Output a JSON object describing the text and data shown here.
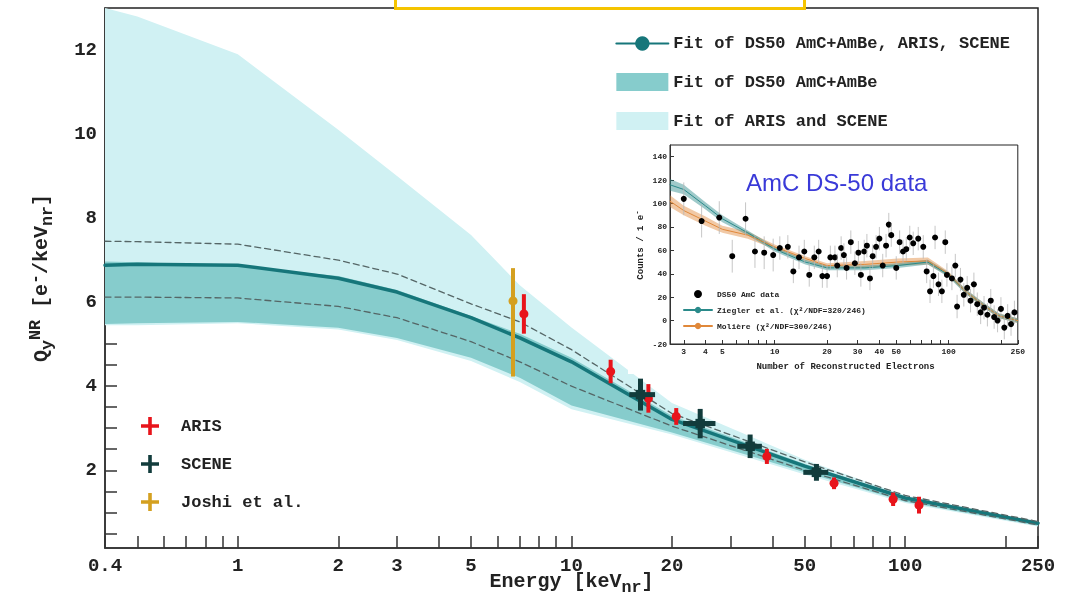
{
  "chart_data": [
    {
      "type": "line",
      "xlabel": "Energy [keV$_{nr}$]",
      "ylabel": "Q$_{y}$$^{NR}$  [e$^{-}$/keV$_{nr}$]",
      "log": "x",
      "legend": [
        "top right",
        "bottom left"
      ],
      "xlim": [
        0.4,
        250
      ],
      "ylim": [
        0.15,
        13
      ],
      "xticks": [
        0.4,
        {
          "value": 0.5,
          "label": null
        },
        {
          "value": 0.6,
          "label": null
        },
        {
          "value": 0.7,
          "label": null
        },
        {
          "value": 0.8,
          "label": null
        },
        {
          "value": 0.9,
          "label": null
        },
        1,
        2,
        3,
        {
          "value": 4,
          "label": null
        },
        5,
        {
          "value": 6,
          "label": null
        },
        {
          "value": 7,
          "label": null
        },
        {
          "value": 8,
          "label": null
        },
        {
          "value": 9,
          "label": null
        },
        10,
        20,
        {
          "value": 30,
          "label": null
        },
        {
          "value": 40,
          "label": null
        },
        50,
        {
          "value": 60,
          "label": null
        },
        {
          "value": 70,
          "label": null
        },
        {
          "value": 80,
          "label": null
        },
        {
          "value": 90,
          "label": null
        },
        100,
        {
          "value": 200,
          "label": null
        },
        250
      ],
      "yticks": [
        {
          "value": 0.5,
          "label": null
        },
        {
          "value": 1,
          "label": null
        },
        {
          "value": 1.5,
          "label": null
        },
        2,
        {
          "value": 2.5,
          "label": null
        },
        {
          "value": 3,
          "label": null
        },
        {
          "value": 3.5,
          "label": null
        },
        4,
        {
          "value": 4.5,
          "label": null
        },
        {
          "value": 5,
          "label": null
        },
        {
          "value": 5.5,
          "label": null
        },
        6,
        {
          "value": 6.5,
          "label": null
        },
        {
          "value": 7,
          "label": null
        },
        {
          "value": 7.5,
          "label": null
        },
        8,
        {
          "value": 8.5,
          "label": null
        },
        {
          "value": 9,
          "label": null
        },
        {
          "value": 9.5,
          "label": null
        },
        10,
        {
          "value": 10.5,
          "label": null
        },
        {
          "value": 11,
          "label": null
        },
        {
          "value": 11.5,
          "label": null
        },
        12,
        {
          "value": 12.5,
          "label": null
        }
      ],
      "series": [
        {
          "name": "Fit of DS50 AmC+AmBe, ARIS, SCENE",
          "color": "#16767a",
          "line_style": "solid",
          "x": [
            0.4,
            0.5,
            1,
            2,
            3,
            5,
            7,
            10,
            20,
            50,
            100,
            250
          ],
          "values": [
            6.88,
            6.9,
            6.88,
            6.57,
            6.24,
            5.63,
            5.15,
            4.58,
            3.21,
            2.1,
            1.34,
            0.74
          ]
        },
        {
          "color": "#556666",
          "line_style": "dashed",
          "x": [
            0.4,
            0.5,
            1,
            2,
            3,
            5,
            7,
            10,
            20,
            50,
            100,
            250
          ],
          "values": [
            7.45,
            7.44,
            7.38,
            7.0,
            6.67,
            5.96,
            5.53,
            4.87,
            3.35,
            2.2,
            1.4,
            0.78
          ]
        },
        {
          "color": "#556666",
          "line_style": "dashed",
          "x": [
            0.4,
            0.5,
            1,
            2,
            3,
            5,
            7,
            10,
            20,
            50,
            100,
            250
          ],
          "values": [
            6.12,
            6.12,
            6.1,
            5.9,
            5.63,
            5.06,
            4.58,
            4.0,
            3.05,
            2.0,
            1.28,
            0.7
          ]
        },
        {
          "name": "Fit of DS50 AmC+AmBe",
          "color": "#86cccc",
          "x": [
            0.4,
            0.5,
            1,
            2,
            3,
            5,
            7,
            10,
            20,
            50,
            100,
            250
          ],
          "lower": [
            5.48,
            5.5,
            5.53,
            5.39,
            5.15,
            4.68,
            4.2,
            3.54,
            2.9,
            1.95,
            1.25,
            0.68
          ],
          "upper": [
            6.97,
            6.95,
            6.86,
            6.62,
            6.29,
            5.67,
            5.25,
            4.68,
            3.3,
            2.15,
            1.37,
            0.76
          ],
          "values": [
            null,
            null,
            null,
            null,
            null,
            null,
            null,
            null,
            null,
            null,
            null,
            null
          ]
        },
        {
          "name": "Fit of ARIS and SCENE",
          "color": "#d0f1f3",
          "x": [
            0.4,
            0.5,
            1,
            2,
            3,
            5,
            7,
            10,
            20,
            50,
            100,
            250
          ],
          "lower": [
            5.45,
            5.45,
            5.5,
            5.35,
            5.1,
            4.6,
            4.1,
            3.45,
            2.85,
            1.9,
            1.22,
            0.66
          ],
          "upper": [
            13,
            12.8,
            11.9,
            10.1,
            9.0,
            7.6,
            6.4,
            5.4,
            3.6,
            2.25,
            1.4,
            0.78
          ],
          "values": [
            null,
            null,
            null,
            null,
            null,
            null,
            null,
            null,
            null,
            null,
            null,
            null
          ]
        },
        {
          "name": "ARIS",
          "type": "scatter",
          "color": "#e8141b",
          "marker": "circle",
          "x": [
            7.2,
            13.1,
            17.0,
            20.6,
            38.5,
            61.2,
            92,
            110
          ],
          "values": [
            5.72,
            4.35,
            3.71,
            3.28,
            2.33,
            1.69,
            1.31,
            1.17
          ],
          "errors": [
            0.47,
            0.28,
            0.34,
            0.2,
            0.18,
            0.14,
            0.16,
            0.2
          ]
        },
        {
          "name": "SCENE",
          "type": "scatter",
          "color": "#123c3c",
          "marker": "square",
          "x": [
            16.1,
            24.3,
            34.3,
            54.2
          ],
          "values": [
            3.8,
            3.11,
            2.57,
            1.95
          ],
          "errors": [
            0.38,
            0.35,
            0.28,
            0.2
          ],
          "xerrors": [
            [
              14.9,
              17.8
            ],
            [
              21.6,
              27.0
            ],
            [
              31.4,
              37.2
            ],
            [
              49.5,
              58.8
            ]
          ]
        },
        {
          "name": "Joshi et al.",
          "type": "scatter",
          "color": "#d4a020",
          "marker": "circle",
          "x": [
            6.68
          ],
          "values": [
            6.03
          ],
          "errors": [
            [
              4.23,
              6.81
            ]
          ]
        }
      ]
    },
    {
      "type": "scatter",
      "xlabel": "Number of Reconstructed Electrons",
      "ylabel": "Counts / 1 e$^{-}$",
      "log": "x",
      "legend": "bottom left",
      "annotations": [
        "AmC DS-50 data"
      ],
      "xlim": [
        2.5,
        250
      ],
      "ylim": [
        -20,
        150
      ],
      "xticks": [
        3,
        4,
        5,
        {
          "value": 6,
          "label": null
        },
        {
          "value": 7,
          "label": null
        },
        {
          "value": 8,
          "label": null
        },
        {
          "value": 9,
          "label": null
        },
        10,
        20,
        30,
        40,
        50,
        {
          "value": 60,
          "label": null
        },
        {
          "value": 70,
          "label": null
        },
        {
          "value": 80,
          "label": null
        },
        {
          "value": 90,
          "label": null
        },
        100,
        {
          "value": 200,
          "label": null
        },
        250
      ],
      "yticks": [
        -20,
        0,
        20,
        40,
        60,
        80,
        100,
        120,
        140
      ],
      "series": [
        {
          "name": "DS50 AmC data",
          "color": "#000000",
          "marker": "circle",
          "x": [
            3.0,
            3.8,
            4.8,
            5.7,
            6.8,
            7.7,
            8.7,
            9.8,
            10.7,
            11.9,
            12.8,
            13.8,
            14.8,
            15.8,
            16.9,
            17.9,
            18.8,
            20,
            20.9,
            22.2,
            22.9,
            24.1,
            25,
            25.9,
            27.4,
            28.9,
            30.3,
            31.3,
            32.7,
            33.9,
            35.3,
            36.6,
            38.3,
            40,
            41.8,
            43.7,
            45.3,
            46.8,
            50,
            52.3,
            54.7,
            57.1,
            59.8,
            62.6,
            66.9,
            71.5,
            74.8,
            78.2,
            81.8,
            83.6,
            87.5,
            91.5,
            95.7,
            97.8,
            104.5,
            109.3,
            111.9,
            117,
            122.3,
            127.9,
            133.7,
            139.8,
            146.2,
            152.9,
            159.9,
            167.2,
            174.8,
            182.8,
            191.2,
            200,
            209.1,
            218.6,
            228.6,
            239.1
          ],
          "values": [
            104,
            85,
            88,
            55,
            87,
            59,
            58,
            56,
            62,
            63,
            42,
            54,
            59,
            39,
            54,
            59,
            38,
            38,
            54,
            54,
            47,
            62,
            56,
            45,
            67,
            49,
            58,
            39,
            59,
            64,
            36,
            55,
            63,
            70,
            47,
            64,
            82,
            73,
            45,
            67,
            59,
            61,
            71,
            66,
            70,
            63,
            42,
            25,
            38,
            71,
            31,
            25,
            67,
            39,
            36,
            47,
            12,
            35,
            22,
            28,
            17,
            31,
            14,
            7,
            11,
            5,
            17,
            3,
            0,
            10,
            -6,
            4,
            -3,
            7
          ],
          "errors": [
            14,
            14,
            14,
            14,
            14,
            14,
            14,
            14,
            10,
            10,
            10,
            10,
            10,
            10,
            10,
            10,
            10,
            10,
            10,
            10,
            10,
            10,
            10,
            10,
            10,
            10,
            10,
            10,
            10,
            10,
            10,
            10,
            10,
            10,
            10,
            10,
            10,
            10,
            10,
            10,
            10,
            10,
            10,
            10,
            10,
            10,
            10,
            10,
            10,
            10,
            10,
            10,
            10,
            10,
            10,
            10,
            10,
            10,
            10,
            10,
            10,
            10,
            10,
            10,
            10,
            10,
            10,
            10,
            10,
            10,
            10,
            10,
            10,
            10
          ]
        },
        {
          "name": "Ziegler et al. (χ²/NDF=320/246)",
          "type": "line",
          "color": "#2a8a8a",
          "x": [
            2.5,
            3,
            4,
            5,
            7,
            10,
            15,
            20,
            33,
            51,
            76,
            100,
            125,
            156,
            195,
            250
          ],
          "values": [
            116,
            112,
            98,
            87,
            75,
            61,
            50,
            45,
            45,
            47,
            50,
            39,
            25,
            14,
            4,
            0
          ],
          "lower": [
            111,
            108,
            95,
            84,
            73,
            59,
            48,
            43,
            43,
            45,
            48,
            37,
            23,
            12,
            2,
            -2
          ],
          "upper": [
            121,
            116,
            101,
            90,
            77,
            63,
            52,
            47,
            47,
            49,
            52,
            41,
            27,
            16,
            6,
            2
          ]
        },
        {
          "name": "Molière (χ²/NDF=300/246)",
          "type": "line",
          "color": "#e0883a",
          "x": [
            2.5,
            3,
            4,
            5,
            7,
            10,
            15,
            20,
            33,
            51,
            76,
            100,
            125,
            156,
            195,
            250
          ],
          "values": [
            102,
            94,
            85,
            78,
            73,
            63,
            53,
            47,
            48,
            50,
            51,
            40,
            25,
            14,
            4,
            0
          ],
          "lower": [
            97,
            90,
            81,
            75,
            70,
            61,
            51,
            45,
            45,
            47,
            48,
            38,
            23,
            12,
            2,
            -2
          ],
          "upper": [
            107,
            98,
            89,
            81,
            76,
            65,
            55,
            49,
            51,
            53,
            54,
            42,
            27,
            16,
            6,
            2
          ]
        }
      ]
    }
  ]
}
